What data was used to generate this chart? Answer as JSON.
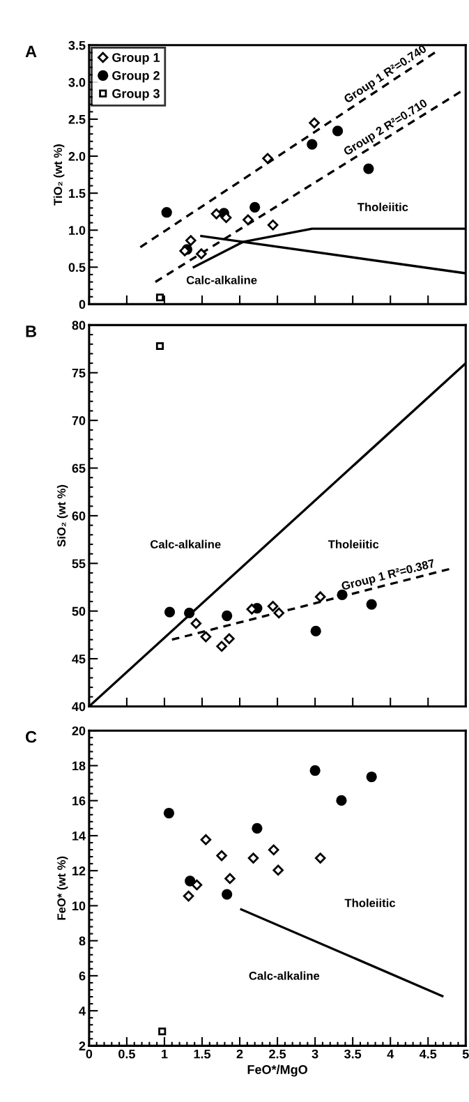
{
  "chart_data": [
    {
      "type": "scatter",
      "title": "A",
      "ylabel": "TiO₂ (wt %)",
      "xlim": [
        0,
        5
      ],
      "ylim": [
        0,
        3.5
      ],
      "xticks": [
        0,
        0.5,
        1,
        1.5,
        2,
        2.5,
        3,
        3.5,
        4,
        4.5,
        5
      ],
      "yticks": [
        0,
        0.5,
        {
          "value": 1,
          "label": "1.0"
        },
        1.5,
        {
          "value": 2,
          "label": "2.0"
        },
        2.5,
        {
          "value": 3,
          "label": "3.0"
        },
        3.5
      ],
      "tick_labels": "y",
      "legend": "top left",
      "grid": false,
      "series": [
        {
          "name": "Group 1",
          "color": "#000000",
          "marker": "diamond",
          "x": [
            2.99,
            2.37,
            1.69,
            1.82,
            2.11,
            2.44,
            1.35,
            1.27,
            1.49
          ],
          "values": [
            2.45,
            1.97,
            1.22,
            1.17,
            1.14,
            1.07,
            0.86,
            0.72,
            0.68
          ]
        },
        {
          "name": "Group 2",
          "color": "#000000",
          "marker": "circle",
          "x": [
            1.03,
            1.79,
            2.2,
            2.96,
            3.3,
            3.71,
            1.3
          ],
          "values": [
            1.24,
            1.23,
            1.31,
            2.16,
            2.34,
            1.83,
            0.74
          ]
        },
        {
          "name": "Group 3",
          "color": "#000000",
          "marker": "square",
          "x": [
            0.94
          ],
          "values": [
            0.09
          ]
        },
        {
          "type": "line",
          "color": "#000000",
          "line_style": "dashed",
          "marker": "none",
          "x": [
            0.68,
            4.59
          ],
          "values": [
            0.77,
            3.4
          ]
        },
        {
          "type": "line",
          "color": "#000000",
          "line_style": "dashed",
          "marker": "none",
          "x": [
            0.88,
            4.93
          ],
          "values": [
            0.3,
            2.87
          ]
        },
        {
          "type": "line",
          "color": "#000000",
          "line_style": "solid",
          "marker": "none",
          "x": [
            1.39,
            2.04,
            2.96,
            4.98
          ],
          "values": [
            0.5,
            0.84,
            1.02,
            1.02
          ]
        },
        {
          "type": "line",
          "color": "#000000",
          "line_style": "solid",
          "marker": "none",
          "x": [
            1.49,
            4.98
          ],
          "values": [
            0.92,
            0.42
          ]
        }
      ],
      "annotations": [
        "Group 1 R²=0.740",
        "Group 2 R²=0.710",
        "Calc-alkaline",
        "Tholeiitic"
      ]
    },
    {
      "type": "scatter",
      "title": "B",
      "ylabel": "SiO₂ (wt %)",
      "xlim": [
        0,
        5
      ],
      "ylim": [
        40,
        80
      ],
      "xticks": [
        0,
        0.5,
        1,
        1.5,
        2,
        2.5,
        3,
        3.5,
        4,
        4.5,
        5
      ],
      "yticks": [
        40,
        45,
        50,
        55,
        60,
        65,
        70,
        75,
        80
      ],
      "tick_labels": "y",
      "legend": false,
      "grid": false,
      "series": [
        {
          "color": "#000000",
          "marker": "diamond",
          "x": [
            1.42,
            1.55,
            1.76,
            1.86,
            2.16,
            2.44,
            2.52,
            3.07
          ],
          "values": [
            48.7,
            47.3,
            46.3,
            47.1,
            50.2,
            50.5,
            49.8,
            51.5
          ]
        },
        {
          "color": "#000000",
          "marker": "circle",
          "x": [
            1.07,
            1.33,
            1.83,
            2.23,
            3.36,
            3.75,
            3.01
          ],
          "values": [
            49.9,
            49.8,
            49.5,
            50.3,
            51.7,
            50.7,
            47.9
          ]
        },
        {
          "color": "#000000",
          "marker": "square",
          "x": [
            0.94
          ],
          "values": [
            77.8
          ]
        },
        {
          "type": "line",
          "color": "#000000",
          "line_style": "dashed",
          "marker": "none",
          "x": [
            1.1,
            4.78
          ],
          "values": [
            47.0,
            54.4
          ]
        },
        {
          "type": "line",
          "color": "#000000",
          "line_style": "solid",
          "marker": "none",
          "x": [
            0,
            5
          ],
          "values": [
            40,
            76
          ]
        }
      ],
      "annotations": [
        "Group 1 R²=0.387",
        "Calc-alkaline",
        "Tholeiitic"
      ]
    },
    {
      "type": "scatter",
      "title": "C",
      "ylabel": "FeO* (wt %)",
      "xlabel": "FeO*/MgO",
      "xlim": [
        0,
        5
      ],
      "ylim": [
        2,
        20
      ],
      "xticks": [
        0,
        0.5,
        1,
        1.5,
        2,
        2.5,
        3,
        3.5,
        4,
        4.5,
        5
      ],
      "yticks": [
        2,
        4,
        6,
        8,
        10,
        12,
        14,
        16,
        18,
        20
      ],
      "legend": false,
      "grid": false,
      "series": [
        {
          "color": "#000000",
          "marker": "diamond",
          "x": [
            1.55,
            1.76,
            2.18,
            2.45,
            2.51,
            3.07,
            1.87,
            1.43,
            1.32
          ],
          "values": [
            13.77,
            12.86,
            12.72,
            13.19,
            12.03,
            12.72,
            11.55,
            11.19,
            10.55
          ]
        },
        {
          "color": "#000000",
          "marker": "circle",
          "x": [
            1.06,
            3.0,
            3.75,
            3.35,
            2.23,
            1.34,
            1.83
          ],
          "values": [
            15.29,
            17.72,
            17.36,
            16.01,
            14.42,
            11.41,
            10.65
          ]
        },
        {
          "color": "#000000",
          "marker": "square",
          "x": [
            0.97
          ],
          "values": [
            2.82
          ]
        },
        {
          "type": "line",
          "color": "#000000",
          "line_style": "solid",
          "marker": "none",
          "x": [
            2.02,
            4.69
          ],
          "values": [
            9.79,
            4.84
          ]
        }
      ],
      "annotations": [
        "Calc-alkaline",
        "Tholeiitic"
      ]
    }
  ]
}
